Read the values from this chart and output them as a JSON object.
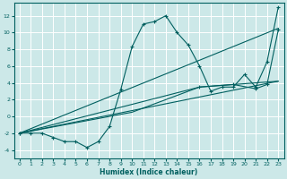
{
  "xlabel": "Humidex (Indice chaleur)",
  "xlim": [
    -0.5,
    23.5
  ],
  "ylim": [
    -5,
    13.5
  ],
  "xticks": [
    0,
    1,
    2,
    3,
    4,
    5,
    6,
    7,
    8,
    9,
    10,
    11,
    12,
    13,
    14,
    15,
    16,
    17,
    18,
    19,
    20,
    21,
    22,
    23
  ],
  "yticks": [
    -4,
    -2,
    0,
    2,
    4,
    6,
    8,
    10,
    12
  ],
  "bg_color": "#cce8e8",
  "line_color": "#005f5f",
  "grid_color": "#b0d4d4",
  "curve1_x": [
    0,
    1,
    2,
    3,
    4,
    5,
    6,
    7,
    8,
    9,
    10,
    11,
    12,
    13,
    14,
    15,
    16,
    17,
    18,
    19,
    20,
    21,
    22,
    23
  ],
  "curve1_y": [
    -2,
    -2,
    -2,
    -2.5,
    -3,
    -3,
    -3.7,
    -3,
    -1.2,
    3.2,
    8.3,
    11,
    11.3,
    12,
    10,
    8.5,
    6,
    3,
    3.5,
    3.5,
    5,
    3.5,
    6.5,
    13
  ],
  "curve2_x": [
    0,
    23
  ],
  "curve2_y": [
    -2,
    10.5
  ],
  "curve3_x": [
    0,
    23
  ],
  "curve3_y": [
    -2,
    4.2
  ],
  "curve4_x": [
    0,
    16,
    19,
    21,
    22,
    23
  ],
  "curve4_y": [
    -2,
    3.5,
    3.8,
    3.3,
    3.8,
    10.3
  ],
  "curve5_x": [
    0,
    10,
    16,
    19,
    23
  ],
  "curve5_y": [
    -2,
    0.5,
    3.5,
    3.8,
    4.2
  ]
}
